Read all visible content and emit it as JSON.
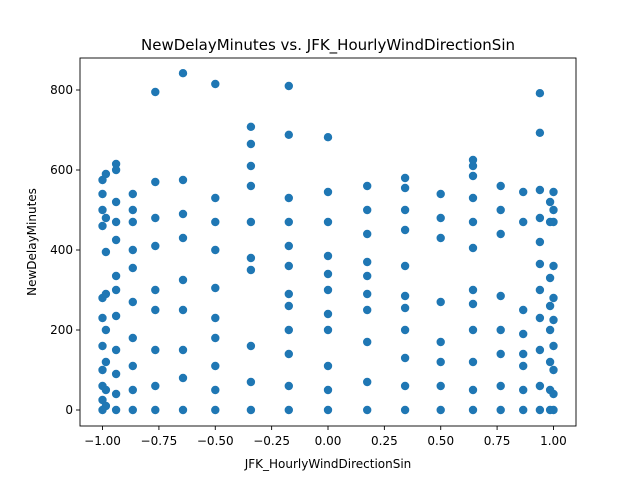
{
  "chart_data": {
    "type": "scatter",
    "title": "NewDelayMinutes vs. JFK_HourlyWindDirectionSin",
    "xlabel": "JFK_HourlyWindDirectionSin",
    "ylabel": "NewDelayMinutes",
    "xlim": [
      -1.1,
      1.1
    ],
    "ylim": [
      -40,
      880
    ],
    "xticks": [
      -1.0,
      -0.75,
      -0.5,
      -0.25,
      0.0,
      0.25,
      0.5,
      0.75,
      1.0
    ],
    "xtick_labels": [
      "−1.00",
      "−0.75",
      "−0.50",
      "−0.25",
      "0.00",
      "0.25",
      "0.50",
      "0.75",
      "1.00"
    ],
    "yticks": [
      0,
      200,
      400,
      600,
      800
    ],
    "ytick_labels": [
      "0",
      "200",
      "400",
      "600",
      "800"
    ],
    "grid": false,
    "marker_color": "#1f77b4",
    "series": [
      {
        "points": [
          [
            -1.0,
            0
          ],
          [
            -1.0,
            25
          ],
          [
            -1.0,
            60
          ],
          [
            -1.0,
            100
          ],
          [
            -1.0,
            160
          ],
          [
            -1.0,
            230
          ],
          [
            -1.0,
            280
          ],
          [
            -1.0,
            460
          ],
          [
            -1.0,
            500
          ],
          [
            -1.0,
            540
          ],
          [
            -1.0,
            575
          ],
          [
            -0.985,
            10
          ],
          [
            -0.985,
            50
          ],
          [
            -0.985,
            120
          ],
          [
            -0.985,
            200
          ],
          [
            -0.985,
            290
          ],
          [
            -0.985,
            395
          ],
          [
            -0.985,
            480
          ],
          [
            -0.985,
            590
          ],
          [
            -0.94,
            0
          ],
          [
            -0.94,
            40
          ],
          [
            -0.94,
            90
          ],
          [
            -0.94,
            150
          ],
          [
            -0.94,
            235
          ],
          [
            -0.94,
            300
          ],
          [
            -0.94,
            335
          ],
          [
            -0.94,
            425
          ],
          [
            -0.94,
            470
          ],
          [
            -0.94,
            520
          ],
          [
            -0.94,
            600
          ],
          [
            -0.94,
            615
          ],
          [
            -0.866,
            0
          ],
          [
            -0.866,
            50
          ],
          [
            -0.866,
            110
          ],
          [
            -0.866,
            180
          ],
          [
            -0.866,
            270
          ],
          [
            -0.866,
            355
          ],
          [
            -0.866,
            400
          ],
          [
            -0.866,
            470
          ],
          [
            -0.866,
            500
          ],
          [
            -0.866,
            540
          ],
          [
            -0.766,
            0
          ],
          [
            -0.766,
            60
          ],
          [
            -0.766,
            150
          ],
          [
            -0.766,
            250
          ],
          [
            -0.766,
            300
          ],
          [
            -0.766,
            410
          ],
          [
            -0.766,
            480
          ],
          [
            -0.766,
            570
          ],
          [
            -0.766,
            795
          ],
          [
            -0.643,
            0
          ],
          [
            -0.643,
            80
          ],
          [
            -0.643,
            150
          ],
          [
            -0.643,
            250
          ],
          [
            -0.643,
            325
          ],
          [
            -0.643,
            430
          ],
          [
            -0.643,
            490
          ],
          [
            -0.643,
            575
          ],
          [
            -0.643,
            842
          ],
          [
            -0.5,
            0
          ],
          [
            -0.5,
            50
          ],
          [
            -0.5,
            110
          ],
          [
            -0.5,
            180
          ],
          [
            -0.5,
            230
          ],
          [
            -0.5,
            305
          ],
          [
            -0.5,
            400
          ],
          [
            -0.5,
            470
          ],
          [
            -0.5,
            530
          ],
          [
            -0.5,
            815
          ],
          [
            -0.342,
            0
          ],
          [
            -0.342,
            70
          ],
          [
            -0.342,
            160
          ],
          [
            -0.342,
            350
          ],
          [
            -0.342,
            380
          ],
          [
            -0.342,
            470
          ],
          [
            -0.342,
            560
          ],
          [
            -0.342,
            610
          ],
          [
            -0.342,
            665
          ],
          [
            -0.342,
            708
          ],
          [
            -0.174,
            0
          ],
          [
            -0.174,
            60
          ],
          [
            -0.174,
            140
          ],
          [
            -0.174,
            200
          ],
          [
            -0.174,
            260
          ],
          [
            -0.174,
            290
          ],
          [
            -0.174,
            360
          ],
          [
            -0.174,
            410
          ],
          [
            -0.174,
            470
          ],
          [
            -0.174,
            530
          ],
          [
            -0.174,
            688
          ],
          [
            -0.174,
            810
          ],
          [
            0.0,
            0
          ],
          [
            0.0,
            50
          ],
          [
            0.0,
            110
          ],
          [
            0.0,
            200
          ],
          [
            0.0,
            240
          ],
          [
            0.0,
            300
          ],
          [
            0.0,
            340
          ],
          [
            0.0,
            385
          ],
          [
            0.0,
            470
          ],
          [
            0.0,
            545
          ],
          [
            0.0,
            682
          ],
          [
            0.174,
            0
          ],
          [
            0.174,
            70
          ],
          [
            0.174,
            170
          ],
          [
            0.174,
            250
          ],
          [
            0.174,
            290
          ],
          [
            0.174,
            335
          ],
          [
            0.174,
            370
          ],
          [
            0.174,
            440
          ],
          [
            0.174,
            500
          ],
          [
            0.174,
            560
          ],
          [
            0.342,
            0
          ],
          [
            0.342,
            60
          ],
          [
            0.342,
            130
          ],
          [
            0.342,
            200
          ],
          [
            0.342,
            255
          ],
          [
            0.342,
            285
          ],
          [
            0.342,
            360
          ],
          [
            0.342,
            450
          ],
          [
            0.342,
            500
          ],
          [
            0.342,
            555
          ],
          [
            0.342,
            580
          ],
          [
            0.5,
            0
          ],
          [
            0.5,
            60
          ],
          [
            0.5,
            120
          ],
          [
            0.5,
            170
          ],
          [
            0.5,
            270
          ],
          [
            0.5,
            430
          ],
          [
            0.5,
            480
          ],
          [
            0.5,
            540
          ],
          [
            0.643,
            0
          ],
          [
            0.643,
            50
          ],
          [
            0.643,
            120
          ],
          [
            0.643,
            200
          ],
          [
            0.643,
            265
          ],
          [
            0.643,
            300
          ],
          [
            0.643,
            405
          ],
          [
            0.643,
            470
          ],
          [
            0.643,
            530
          ],
          [
            0.643,
            585
          ],
          [
            0.643,
            610
          ],
          [
            0.643,
            625
          ],
          [
            0.766,
            0
          ],
          [
            0.766,
            60
          ],
          [
            0.766,
            140
          ],
          [
            0.766,
            200
          ],
          [
            0.766,
            285
          ],
          [
            0.766,
            440
          ],
          [
            0.766,
            500
          ],
          [
            0.766,
            560
          ],
          [
            0.866,
            0
          ],
          [
            0.866,
            50
          ],
          [
            0.866,
            110
          ],
          [
            0.866,
            140
          ],
          [
            0.866,
            190
          ],
          [
            0.866,
            250
          ],
          [
            0.866,
            470
          ],
          [
            0.866,
            545
          ],
          [
            0.94,
            0
          ],
          [
            0.94,
            60
          ],
          [
            0.94,
            150
          ],
          [
            0.94,
            230
          ],
          [
            0.94,
            300
          ],
          [
            0.94,
            365
          ],
          [
            0.94,
            420
          ],
          [
            0.94,
            480
          ],
          [
            0.94,
            550
          ],
          [
            0.94,
            693
          ],
          [
            0.94,
            792
          ],
          [
            0.985,
            0
          ],
          [
            0.985,
            50
          ],
          [
            0.985,
            120
          ],
          [
            0.985,
            200
          ],
          [
            0.985,
            260
          ],
          [
            0.985,
            330
          ],
          [
            0.985,
            470
          ],
          [
            0.985,
            520
          ],
          [
            1.0,
            0
          ],
          [
            1.0,
            40
          ],
          [
            1.0,
            100
          ],
          [
            1.0,
            160
          ],
          [
            1.0,
            225
          ],
          [
            1.0,
            280
          ],
          [
            1.0,
            360
          ],
          [
            1.0,
            470
          ],
          [
            1.0,
            500
          ],
          [
            1.0,
            545
          ]
        ]
      }
    ]
  }
}
